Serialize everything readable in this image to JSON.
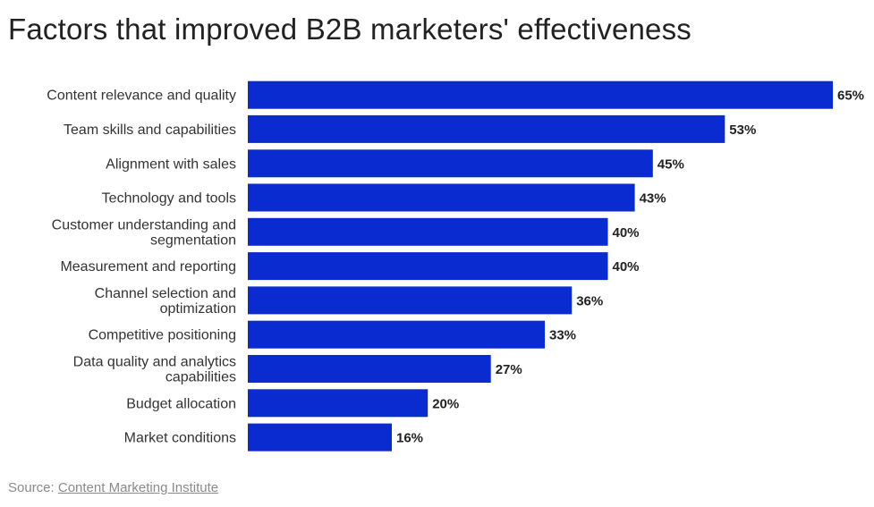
{
  "title": "Factors that improved B2B marketers' effectiveness",
  "source": {
    "prefix": "Source: ",
    "link_text": "Content Marketing Institute"
  },
  "colors": {
    "bar": "#0a2bd0",
    "label": "#333333",
    "value": "#222222"
  },
  "chart_data": {
    "type": "bar",
    "orientation": "horizontal",
    "title": "Factors that improved B2B marketers' effectiveness",
    "categories": [
      [
        "Content relevance and quality"
      ],
      [
        "Team skills and capabilities"
      ],
      [
        "Alignment with sales"
      ],
      [
        "Technology and tools"
      ],
      [
        "Customer understanding and",
        "segmentation"
      ],
      [
        "Measurement and reporting"
      ],
      [
        "Channel selection and",
        "optimization"
      ],
      [
        "Competitive positioning"
      ],
      [
        "Data quality and analytics",
        "capabilities"
      ],
      [
        "Budget allocation"
      ],
      [
        "Market conditions"
      ]
    ],
    "values": [
      65,
      53,
      45,
      43,
      40,
      40,
      36,
      33,
      27,
      20,
      16
    ],
    "value_labels": [
      "65%",
      "53%",
      "45%",
      "43%",
      "40%",
      "40%",
      "36%",
      "33%",
      "27%",
      "20%",
      "16%"
    ],
    "xlim": [
      0,
      65
    ],
    "grid": false,
    "legend": "none"
  }
}
